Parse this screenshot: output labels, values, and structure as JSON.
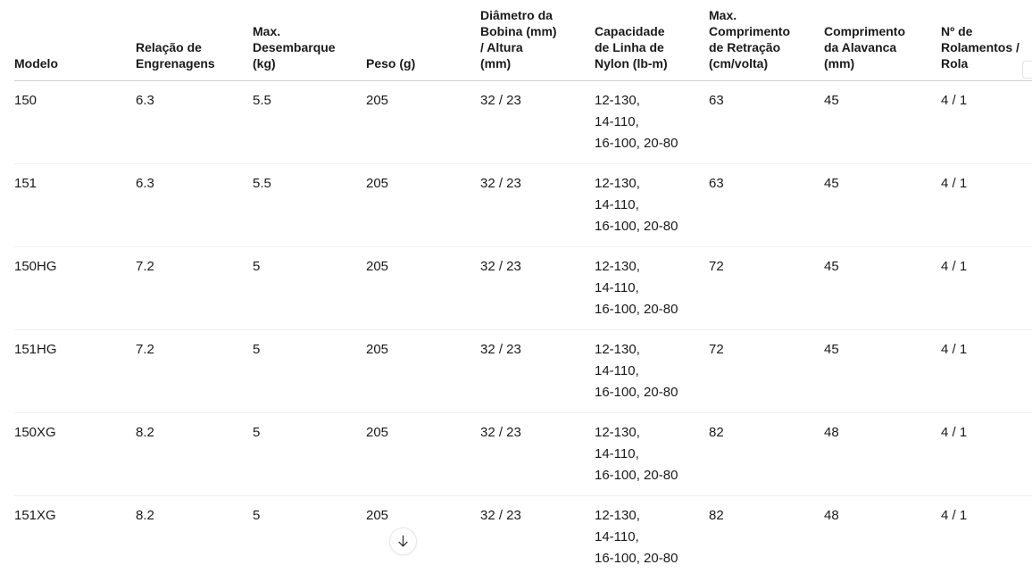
{
  "table": {
    "columns": [
      {
        "id": "modelo",
        "label": "Modelo"
      },
      {
        "id": "relacao-de-engrenagens",
        "label": "Relação de\nEngrenagens"
      },
      {
        "id": "max-desembarque",
        "label": "Max.\nDesembarque\n(kg)"
      },
      {
        "id": "peso",
        "label": "Peso (g)"
      },
      {
        "id": "diametro-bobina-altura",
        "label": "Diâmetro da\nBobina (mm)\n/ Altura\n(mm)"
      },
      {
        "id": "capacidade-linha-nylon",
        "label": "Capacidade\nde Linha de\nNylon (lb-m)"
      },
      {
        "id": "max-comprimento-retracao",
        "label": "Max.\nComprimento\nde Retração\n(cm/volta)"
      },
      {
        "id": "comprimento-alavanca",
        "label": "Comprimento\nda Alavanca\n(mm)"
      },
      {
        "id": "num-rolamentos",
        "label": "Nº de\nRolamentos /\nRola"
      }
    ],
    "rows": [
      [
        "150",
        "6.3",
        "5.5",
        "205",
        "32 / 23",
        "12-130,\n14-110,\n16-100, 20-80",
        "63",
        "45",
        "4 / 1"
      ],
      [
        "151",
        "6.3",
        "5.5",
        "205",
        "32 / 23",
        "12-130,\n14-110,\n16-100, 20-80",
        "63",
        "45",
        "4 / 1"
      ],
      [
        "150HG",
        "7.2",
        "5",
        "205",
        "32 / 23",
        "12-130,\n14-110,\n16-100, 20-80",
        "72",
        "45",
        "4 / 1"
      ],
      [
        "151HG",
        "7.2",
        "5",
        "205",
        "32 / 23",
        "12-130,\n14-110,\n16-100, 20-80",
        "72",
        "45",
        "4 / 1"
      ],
      [
        "150XG",
        "8.2",
        "5",
        "205",
        "32 / 23",
        "12-130,\n14-110,\n16-100, 20-80",
        "82",
        "48",
        "4 / 1"
      ],
      [
        "151XG",
        "8.2",
        "5",
        "205",
        "32 / 23",
        "12-130,\n14-110,\n16-100, 20-80",
        "82",
        "48",
        "4 / 1"
      ]
    ]
  },
  "scroll_button": {
    "icon": "arrow-down"
  }
}
